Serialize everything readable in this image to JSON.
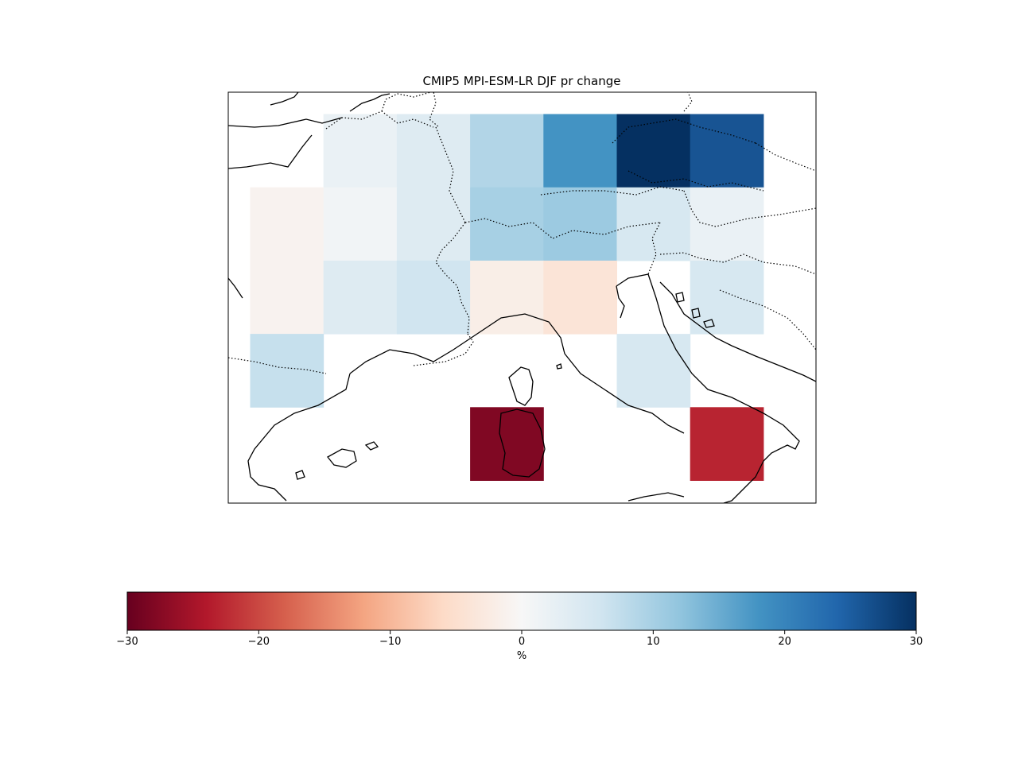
{
  "map": {
    "title": "CMIP5 MPI-ESM-LR DJF pr change",
    "grid_cols": 8,
    "grid_rows": 6,
    "cells": [
      {
        "row": 0,
        "col": 1,
        "value": 2
      },
      {
        "row": 0,
        "col": 2,
        "value": 4
      },
      {
        "row": 0,
        "col": 3,
        "value": 9
      },
      {
        "row": 0,
        "col": 4,
        "value": 18
      },
      {
        "row": 0,
        "col": 5,
        "value": 30
      },
      {
        "row": 0,
        "col": 6,
        "value": 26
      },
      {
        "row": 1,
        "col": 0,
        "value": -1
      },
      {
        "row": 1,
        "col": 1,
        "value": 1
      },
      {
        "row": 1,
        "col": 2,
        "value": 4
      },
      {
        "row": 1,
        "col": 3,
        "value": 10
      },
      {
        "row": 1,
        "col": 4,
        "value": 11
      },
      {
        "row": 1,
        "col": 5,
        "value": 5
      },
      {
        "row": 1,
        "col": 6,
        "value": 2
      },
      {
        "row": 2,
        "col": 0,
        "value": -1
      },
      {
        "row": 2,
        "col": 1,
        "value": 4
      },
      {
        "row": 2,
        "col": 2,
        "value": 6
      },
      {
        "row": 2,
        "col": 3,
        "value": -2
      },
      {
        "row": 2,
        "col": 4,
        "value": -4
      },
      {
        "row": 2,
        "col": 6,
        "value": 5
      },
      {
        "row": 3,
        "col": 0,
        "value": 7
      },
      {
        "row": 3,
        "col": 5,
        "value": 5
      },
      {
        "row": 4,
        "col": 3,
        "value": -28
      },
      {
        "row": 4,
        "col": 6,
        "value": -23
      }
    ]
  },
  "colorbar": {
    "min": -30,
    "max": 30,
    "ticks": [
      -30,
      -20,
      -10,
      0,
      10,
      20,
      30
    ],
    "tick_labels": [
      "−30",
      "−20",
      "−10",
      "0",
      "10",
      "20",
      "30"
    ],
    "label": "%",
    "colormap": [
      "#67001f",
      "#b2182b",
      "#d6604d",
      "#f4a582",
      "#fddbc7",
      "#f7f7f7",
      "#d1e5f0",
      "#92c5de",
      "#4393c3",
      "#2166ac",
      "#053061"
    ]
  }
}
